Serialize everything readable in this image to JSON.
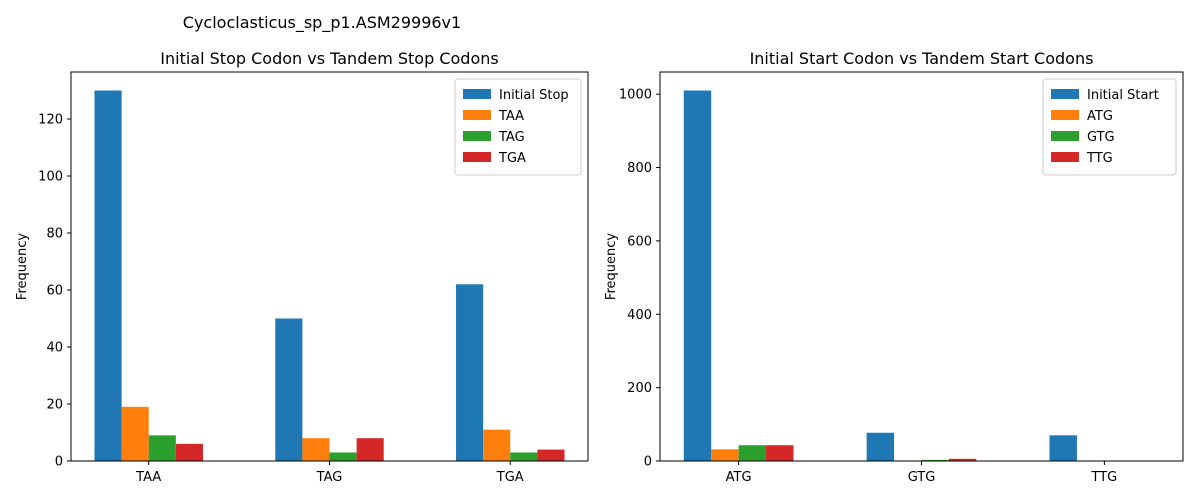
{
  "suptitle": "Cycloclasticus_sp_p1.ASM29996v1",
  "colors": [
    "#1f77b4",
    "#ff7f0e",
    "#2ca02c",
    "#d62728"
  ],
  "chart_data": [
    {
      "type": "bar",
      "title": "Initial Stop Codon vs Tandem Stop Codons",
      "xlabel": "",
      "ylabel": "Frequency",
      "categories": [
        "TAA",
        "TAG",
        "TGA"
      ],
      "series": [
        {
          "name": "Initial Stop",
          "values": [
            130,
            50,
            62
          ]
        },
        {
          "name": "TAA",
          "values": [
            19,
            8,
            11
          ]
        },
        {
          "name": "TAG",
          "values": [
            9,
            3,
            3
          ]
        },
        {
          "name": "TGA",
          "values": [
            6,
            8,
            4
          ]
        }
      ],
      "ylim": [
        0,
        136.5
      ],
      "yticks": [
        0,
        20,
        40,
        60,
        80,
        100,
        120
      ],
      "legend": "top-right",
      "grid": false
    },
    {
      "type": "bar",
      "title": "Initial Start Codon vs Tandem Start Codons",
      "xlabel": "",
      "ylabel": "Frequency",
      "categories": [
        "ATG",
        "GTG",
        "TTG"
      ],
      "series": [
        {
          "name": "Initial Start",
          "values": [
            1010,
            77,
            70
          ]
        },
        {
          "name": "ATG",
          "values": [
            32,
            0,
            0
          ]
        },
        {
          "name": "GTG",
          "values": [
            43,
            3,
            0
          ]
        },
        {
          "name": "TTG",
          "values": [
            43,
            6,
            0
          ]
        }
      ],
      "ylim": [
        0,
        1060.5
      ],
      "yticks": [
        0,
        200,
        400,
        600,
        800,
        1000
      ],
      "legend": "top-right",
      "grid": false
    }
  ]
}
